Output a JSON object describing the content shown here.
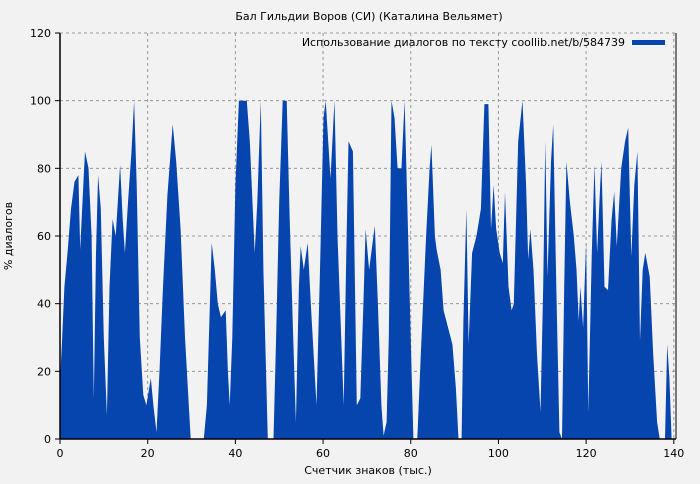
{
  "chart_data": {
    "type": "area",
    "title": "Бал Гильдии Воров (СИ) (Каталина Вельямет)",
    "xlabel": "Счетчик знаков (тыс.)",
    "ylabel": "% диалогов",
    "xlim": [
      0,
      140.5
    ],
    "ylim": [
      0,
      120
    ],
    "xticks": [
      0,
      20,
      40,
      60,
      80,
      100,
      120,
      140
    ],
    "yticks": [
      0,
      20,
      40,
      60,
      80,
      100,
      120
    ],
    "grid": true,
    "legend_position": "top-right",
    "color": "#0645ad",
    "series": [
      {
        "name": "Использование диалогов по тексту coollib.net/b/584739",
        "x": [
          0,
          0,
          0.5,
          1,
          1.7,
          2.5,
          3.3,
          4.2,
          4.6,
          5.2,
          5.7,
          6.5,
          7.2,
          7.7,
          8.2,
          8.7,
          9.3,
          10,
          10.7,
          11.3,
          12,
          12.7,
          13.7,
          14.3,
          14.8,
          15.5,
          16.3,
          16.9,
          17.5,
          18.2,
          19,
          19.7,
          20.7,
          21.3,
          22,
          22.7,
          23.5,
          24.5,
          25.7,
          26.5,
          27.5,
          28.5,
          29.8,
          32.8,
          33.5,
          34.6,
          35.3,
          36,
          36.7,
          37.8,
          38.3,
          38.7,
          39.3,
          40,
          40.8,
          42.6,
          43.3,
          44.4,
          45,
          45.8,
          46.4,
          47.4,
          48.7,
          49.3,
          50,
          50.8,
          51.7,
          52.4,
          53.2,
          53.8,
          54.5,
          54.9,
          55.6,
          56.5,
          57.2,
          58.5,
          59.3,
          60.1,
          60.6,
          61.7,
          62.6,
          63.3,
          64.7,
          65.3,
          65.8,
          66.8,
          67.7,
          68.5,
          69.2,
          69.7,
          70.5,
          71.8,
          72.5,
          73.3,
          73.8,
          74.5,
          75,
          75.6,
          76.3,
          77,
          77.9,
          78.6,
          79.3,
          80.2,
          80.6,
          81.5,
          82.3,
          83.5,
          84.3,
          84.7,
          85.5,
          85.9,
          86.8,
          87.5,
          88.5,
          89.5,
          90.3,
          90.9,
          91.6,
          92,
          92.7,
          93.2,
          94,
          95,
          96,
          96.8,
          97.7,
          98.3,
          98.9,
          99.5,
          100.3,
          101,
          101.5,
          102.3,
          103,
          103.5,
          104.5,
          105.5,
          106.3,
          106.8,
          107.3,
          108,
          108.8,
          109.6,
          110.2,
          110.7,
          111.2,
          112,
          112.5,
          113.2,
          113.9,
          114.5,
          115,
          115.5,
          116.3,
          117.2,
          117.8,
          118.3,
          118.7,
          119.3,
          120,
          120.5,
          121.3,
          121.9,
          122.5,
          123.2,
          123.5,
          124.2,
          125,
          125.8,
          126.4,
          127,
          128,
          128.9,
          129.6,
          130.3,
          131,
          131.7,
          132.3,
          132.9,
          133.5,
          134.5,
          135.3,
          136.2,
          136.8,
          138,
          138.5,
          139,
          139.5
        ],
        "y": [
          0,
          17,
          30,
          45,
          55,
          68,
          76,
          78,
          56,
          72,
          85,
          80,
          60,
          12,
          55,
          78,
          68,
          30,
          7,
          45,
          65,
          60,
          81,
          65,
          55,
          70,
          85,
          100,
          75,
          30,
          13,
          10,
          18,
          10,
          2,
          20,
          45,
          72,
          93,
          82,
          62,
          30,
          0,
          0,
          10,
          58,
          50,
          40,
          36,
          38,
          20,
          10,
          30,
          75,
          100,
          100,
          88,
          55,
          70,
          100,
          50,
          0,
          0,
          30,
          70,
          100,
          100,
          65,
          30,
          5,
          45,
          57,
          50,
          58,
          40,
          10,
          50,
          95,
          100,
          77,
          100,
          60,
          10,
          55,
          88,
          85,
          10,
          12,
          40,
          62,
          50,
          63,
          40,
          10,
          1,
          5,
          30,
          100,
          95,
          80,
          80,
          100,
          65,
          20,
          0,
          0,
          25,
          60,
          80,
          87,
          60,
          56,
          50,
          38,
          33,
          28,
          15,
          0,
          0,
          35,
          68,
          28,
          55,
          60,
          68,
          99,
          99,
          62,
          75,
          62,
          55,
          52,
          73,
          45,
          38,
          40,
          88,
          100,
          75,
          53,
          62,
          50,
          25,
          8,
          45,
          88,
          48,
          82,
          93,
          45,
          2,
          0,
          45,
          82,
          70,
          60,
          50,
          35,
          45,
          33,
          58,
          8,
          55,
          81,
          55,
          75,
          82,
          45,
          44,
          65,
          73,
          57,
          80,
          88,
          92,
          54,
          75,
          85,
          29,
          50,
          55,
          48,
          25,
          5,
          0,
          0,
          28,
          18,
          0
        ]
      }
    ]
  }
}
